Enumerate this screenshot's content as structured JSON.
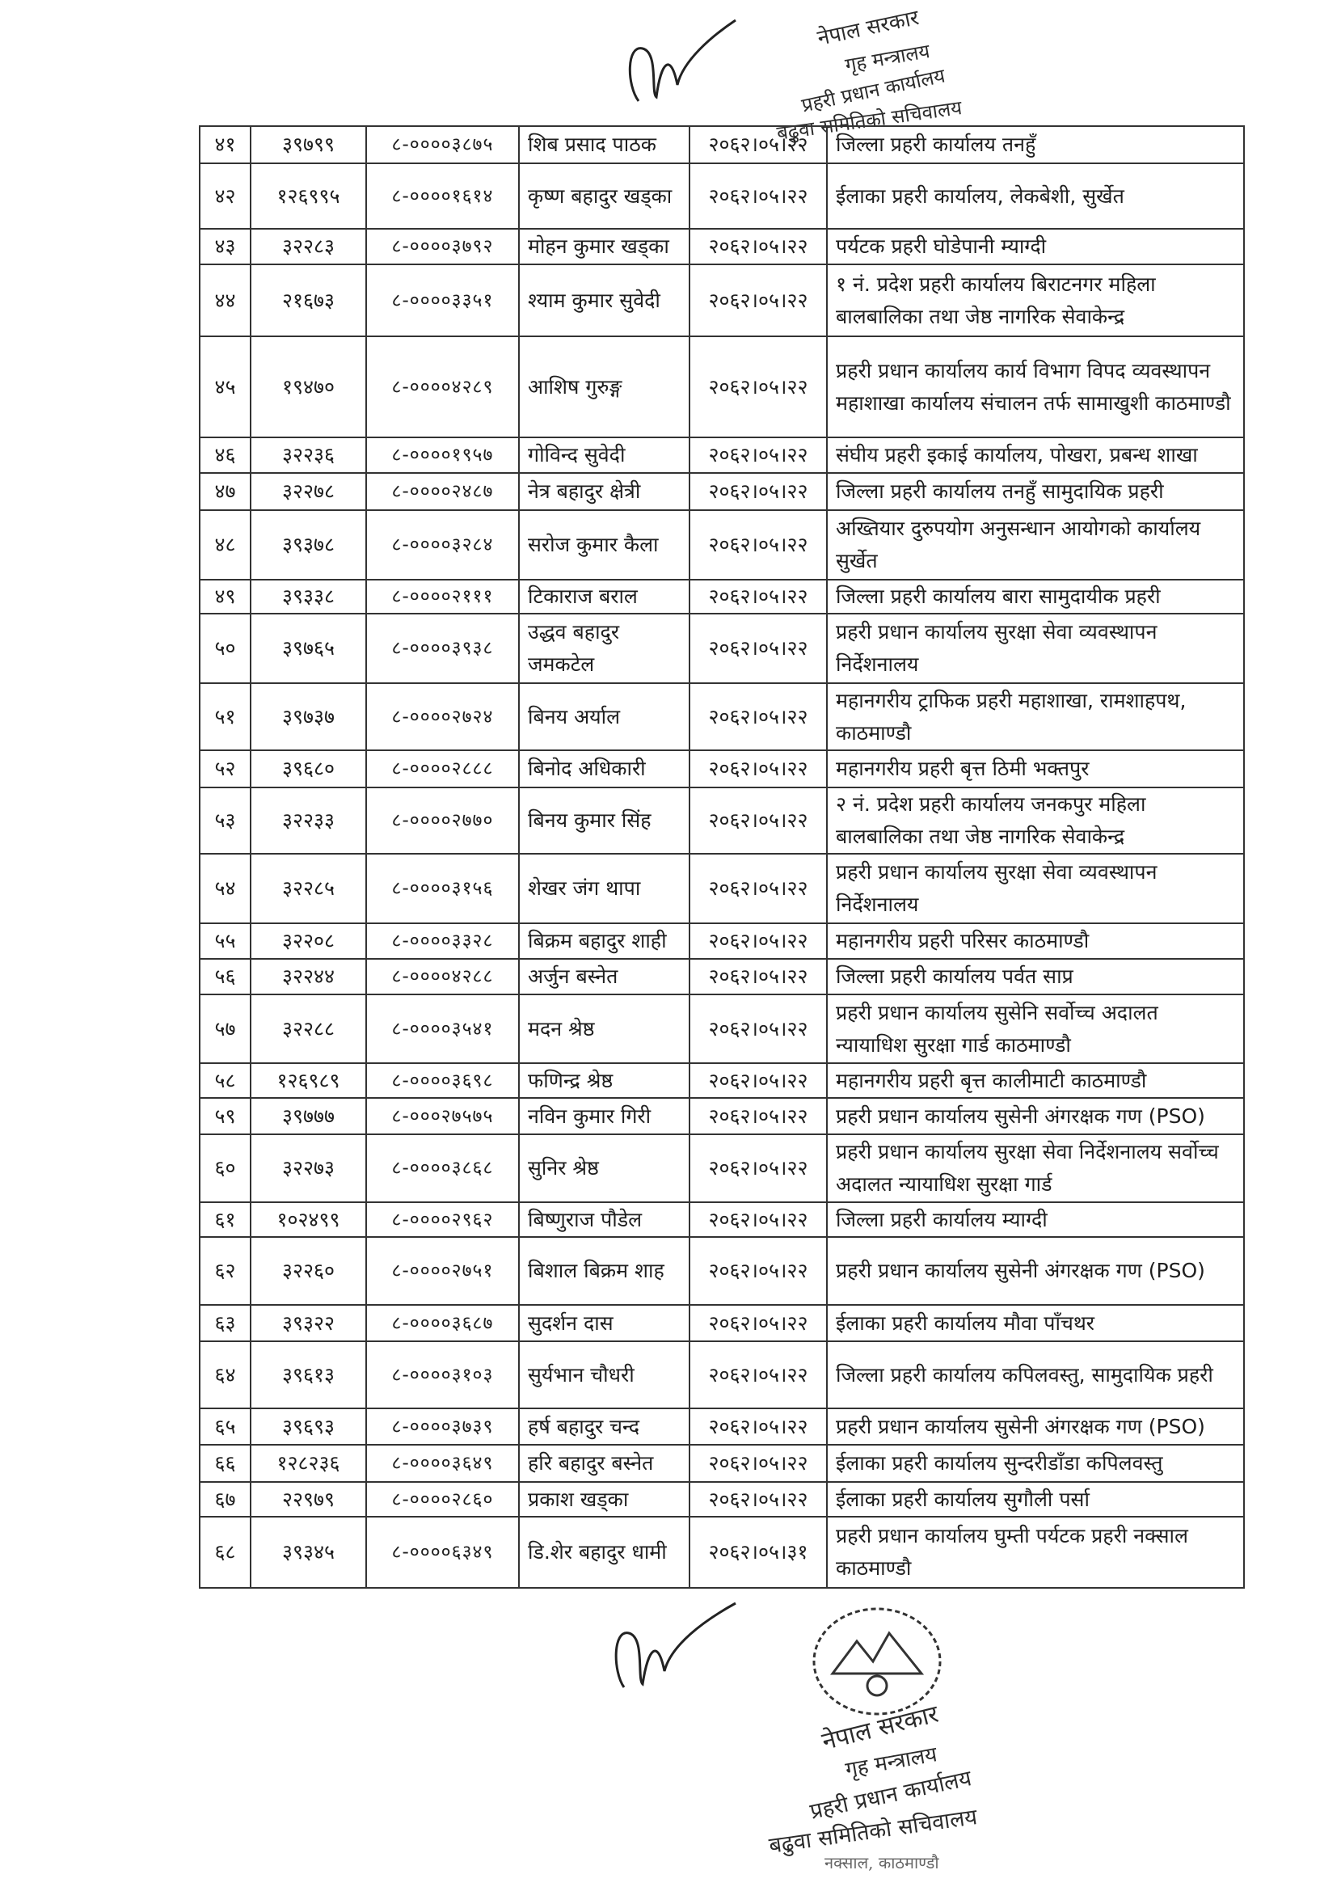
{
  "stamp_text": [
    "नेपाल सरकार",
    "गृह मन्त्रालय",
    "प्रहरी प्रधान कार्यालय",
    "बढुवा समितिको सचिवालय",
    "नक्साल, काठमाण्डौ"
  ],
  "rows": [
    [
      "४१",
      "३९७९९",
      "८-००००३८७५",
      "शिब प्रसाद पाठक",
      "२०६२।०५।२२",
      "जिल्ला प्रहरी कार्यालय तनहुँ"
    ],
    [
      "४२",
      "१२६९९५",
      "८-००००१६१४",
      "कृष्ण बहादुर खड्का",
      "२०६२।०५।२२",
      "ईलाका प्रहरी कार्यालय, लेकबेशी, सुर्खेत"
    ],
    [
      "४३",
      "३२२८३",
      "८-००००३७९२",
      "मोहन कुमार खड्का",
      "२०६२।०५।२२",
      "पर्यटक प्रहरी घोडेपानी म्याग्दी"
    ],
    [
      "४४",
      "२१६७३",
      "८-००००३३५१",
      "श्याम कुमार सुवेदी",
      "२०६२।०५।२२",
      "१ नं. प्रदेश प्रहरी कार्यालय बिराटनगर महिला बालबालिका तथा जेष्ठ नागरिक सेवाकेन्द्र"
    ],
    [
      "४५",
      "१९४७०",
      "८-००००४२८९",
      "आशिष गुरुङ्ग",
      "२०६२।०५।२२",
      "प्रहरी प्रधान कार्यालय कार्य विभाग विपद व्यवस्थापन महाशाखा कार्यालय संचालन तर्फ सामाखुशी काठमाण्डौ"
    ],
    [
      "४६",
      "३२२३६",
      "८-००००१९५७",
      "गोविन्द सुवेदी",
      "२०६२।०५।२२",
      "संघीय प्रहरी इकाई कार्यालय, पोखरा, प्रबन्ध शाखा"
    ],
    [
      "४७",
      "३२२७८",
      "८-००००२४८७",
      "नेत्र बहादुर क्षेत्री",
      "२०६२।०५।२२",
      "जिल्ला प्रहरी कार्यालय तनहुँ सामुदायिक प्रहरी"
    ],
    [
      "४८",
      "३९३७८",
      "८-००००३२८४",
      "सरोज कुमार कैला",
      "२०६२।०५।२२",
      "अख्तियार दुरुपयोग अनुसन्धान आयोगको कार्यालय सुर्खेत"
    ],
    [
      "४९",
      "३९३३८",
      "८-००००२१११",
      "टिकाराज बराल",
      "२०६२।०५।२२",
      "जिल्ला प्रहरी कार्यालय बारा सामुदायीक प्रहरी"
    ],
    [
      "५०",
      "३९७६५",
      "८-००००३९३८",
      "उद्धव बहादुर जमकटेल",
      "२०६२।०५।२२",
      "प्रहरी प्रधान कार्यालय सुरक्षा सेवा व्यवस्थापन निर्देशनालय"
    ],
    [
      "५१",
      "३९७३७",
      "८-००००२७२४",
      "बिनय अर्याल",
      "२०६२।०५।२२",
      "महानगरीय ट्राफिक प्रहरी महाशाखा, रामशाहपथ, काठमाण्डौ"
    ],
    [
      "५२",
      "३९६८०",
      "८-००००२८८८",
      "बिनोद अधिकारी",
      "२०६२।०५।२२",
      "महानगरीय प्रहरी बृत्त ठिमी भक्तपुर"
    ],
    [
      "५३",
      "३२२३३",
      "८-००००२७७०",
      "बिनय कुमार सिंह",
      "२०६२।०५।२२",
      "२ नं. प्रदेश प्रहरी कार्यालय जनकपुर महिला बालबालिका तथा जेष्ठ नागरिक सेवाकेन्द्र"
    ],
    [
      "५४",
      "३२२८५",
      "८-००००३१५६",
      "शेखर जंग थापा",
      "२०६२।०५।२२",
      "प्रहरी प्रधान कार्यालय सुरक्षा सेवा व्यवस्थापन निर्देशनालय"
    ],
    [
      "५५",
      "३२२०८",
      "८-००००३३२८",
      "बिक्रम बहादुर शाही",
      "२०६२।०५।२२",
      "महानगरीय प्रहरी परिसर काठमाण्डौ"
    ],
    [
      "५६",
      "३२२४४",
      "८-००००४२८८",
      "अर्जुन बस्नेत",
      "२०६२।०५।२२",
      "जिल्ला प्रहरी कार्यालय पर्वत साप्र"
    ],
    [
      "५७",
      "३२२८८",
      "८-००००३५४१",
      "मदन श्रेष्ठ",
      "२०६२।०५।२२",
      "प्रहरी प्रधान कार्यालय सुसेनि सर्वोच्च अदालत न्यायाधिश सुरक्षा गार्ड काठमाण्डौ"
    ],
    [
      "५८",
      "१२६९८९",
      "८-००००३६९८",
      "फणिन्द्र श्रेष्ठ",
      "२०६२।०५।२२",
      "महानगरीय प्रहरी बृत्त कालीमाटी काठमाण्डौ"
    ],
    [
      "५९",
      "३९७७७",
      "८-०००२७५७५",
      "नविन कुमार गिरी",
      "२०६२।०५।२२",
      "प्रहरी प्रधान कार्यालय सुसेनी अंगरक्षक गण (PSO)"
    ],
    [
      "६०",
      "३२२७३",
      "८-००००३८६८",
      "सुनिर श्रेष्ठ",
      "२०६२।०५।२२",
      "प्रहरी प्रधान कार्यालय सुरक्षा सेवा निर्देशनालय सर्वोच्च अदालत न्यायाधिश सुरक्षा गार्ड"
    ],
    [
      "६१",
      "१०२४९९",
      "८-००००२९६२",
      "बिष्णुराज पौडेल",
      "२०६२।०५।२२",
      "जिल्ला प्रहरी कार्यालय म्याग्दी"
    ],
    [
      "६२",
      "३२२६०",
      "८-००००२७५१",
      "बिशाल बिक्रम शाह",
      "२०६२।०५।२२",
      "प्रहरी प्रधान कार्यालय सुसेनी अंगरक्षक गण (PSO)"
    ],
    [
      "६३",
      "३९३२२",
      "८-००००३६८७",
      "सुदर्शन दास",
      "२०६२।०५।२२",
      "ईलाका प्रहरी कार्यालय मौवा पाँचथर"
    ],
    [
      "६४",
      "३९६१३",
      "८-००००३१०३",
      "सुर्यभान चौधरी",
      "२०६२।०५।२२",
      "जिल्ला प्रहरी कार्यालय कपिलवस्तु, सामुदायिक प्रहरी"
    ],
    [
      "६५",
      "३९६९३",
      "८-००००३७३९",
      "हर्ष बहादुर चन्द",
      "२०६२।०५।२२",
      "प्रहरी प्रधान कार्यालय सुसेनी अंगरक्षक गण (PSO)"
    ],
    [
      "६६",
      "१२८२३६",
      "८-००००३६४९",
      "हरि बहादुर बस्नेत",
      "२०६२।०५।२२",
      "ईलाका प्रहरी कार्यालय सुन्दरीडाँडा कपिलवस्तु"
    ],
    [
      "६७",
      "२२९७९",
      "८-००००२८६०",
      "प्रकाश खड्का",
      "२०६२।०५।२२",
      "ईलाका प्रहरी कार्यालय सुगौली पर्सा"
    ],
    [
      "६८",
      "३९३४५",
      "८-००००६३४९",
      "डि.शेर बहादुर धामी",
      "२०६२।०५।३१",
      "प्रहरी प्रधान कार्यालय घुम्ती पर्यटक प्रहरी नक्साल काठमाण्डौ"
    ]
  ]
}
